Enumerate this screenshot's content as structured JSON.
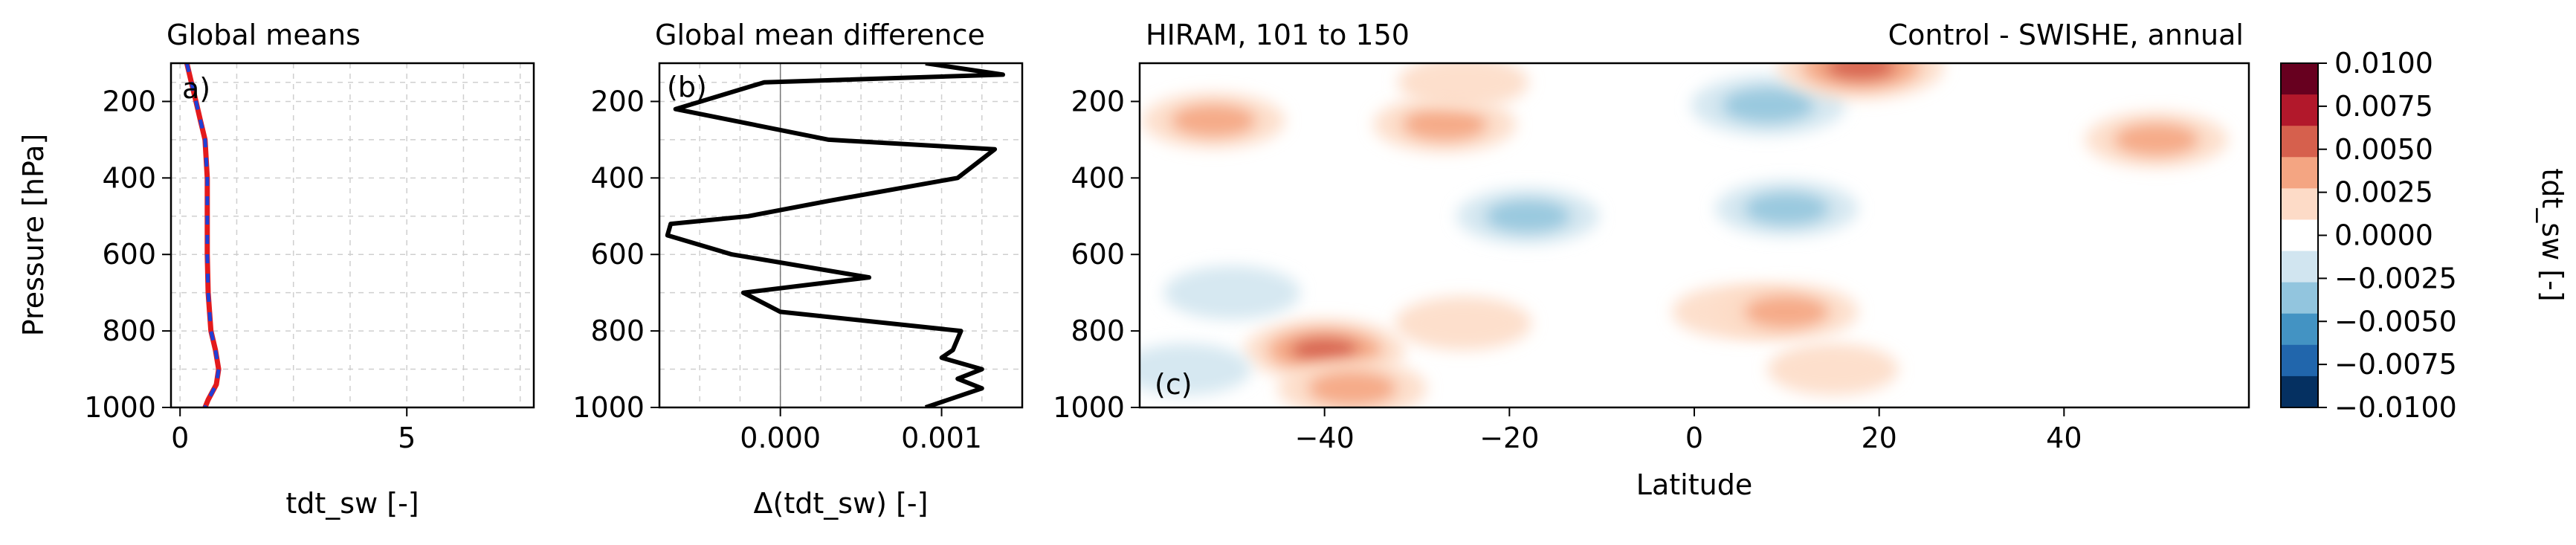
{
  "chart_data": [
    {
      "panel": "a",
      "type": "line",
      "title": "Global means",
      "panel_label": "a)",
      "xlabel": "tdt_sw [-]",
      "ylabel": "Pressure [hPa]",
      "xlim": [
        -0.2,
        7.8
      ],
      "ylim": [
        1000,
        100
      ],
      "xticks": [
        0,
        5
      ],
      "yticks": [
        200,
        400,
        600,
        800,
        1000
      ],
      "grid": true,
      "series": [
        {
          "color": "#e31a1c",
          "style": "solid",
          "x": [
            0.15,
            0.25,
            0.35,
            0.45,
            0.55,
            0.6,
            0.6,
            0.6,
            0.62,
            0.68,
            0.78,
            0.85,
            0.8,
            0.62,
            0.55
          ],
          "y": [
            100,
            150,
            200,
            250,
            300,
            400,
            500,
            600,
            700,
            800,
            850,
            900,
            940,
            980,
            1000
          ]
        },
        {
          "color": "#1f3fd6",
          "style": "dashed",
          "x": [
            0.15,
            0.25,
            0.35,
            0.45,
            0.55,
            0.6,
            0.6,
            0.6,
            0.62,
            0.68,
            0.78,
            0.85,
            0.8,
            0.62,
            0.55
          ],
          "y": [
            100,
            150,
            200,
            250,
            300,
            400,
            500,
            600,
            700,
            800,
            850,
            900,
            940,
            980,
            1000
          ]
        }
      ]
    },
    {
      "panel": "b",
      "type": "line",
      "title": "Global mean difference",
      "panel_label": "(b)",
      "xlabel": "Δ(tdt_sw) [-]",
      "xlim": [
        -0.00075,
        0.0015
      ],
      "ylim": [
        1000,
        100
      ],
      "xticks": [
        0.0,
        0.001
      ],
      "xticklabels": [
        "0.000",
        "0.001"
      ],
      "yticks": [
        200,
        400,
        600,
        800,
        1000
      ],
      "grid": true,
      "zero_line": true,
      "series": [
        {
          "color": "#000000",
          "x": [
            0.0009,
            0.00138,
            -0.0001,
            -0.00065,
            0.0003,
            0.00133,
            0.0011,
            0.0003,
            -0.0002,
            -0.00068,
            -0.0007,
            -0.0003,
            0.00055,
            -0.00023,
            0.0,
            0.00112,
            0.00107,
            0.001,
            0.00125,
            0.0011,
            0.00125,
            0.0009
          ],
          "y": [
            100,
            130,
            150,
            220,
            300,
            325,
            400,
            460,
            500,
            520,
            550,
            600,
            660,
            700,
            750,
            800,
            850,
            870,
            900,
            925,
            950,
            1000
          ]
        }
      ]
    },
    {
      "panel": "c",
      "type": "heatmap",
      "subtype": "filled-contour",
      "title": "HIRAM, 101 to 150",
      "title_right": "Control - SWISHE, annual",
      "panel_label": "(c)",
      "xlabel": "Latitude",
      "xlim": [
        -60,
        60
      ],
      "ylim": [
        1000,
        100
      ],
      "xticks": [
        -40,
        -20,
        0,
        20,
        40
      ],
      "xticklabels": [
        "−40",
        "−20",
        "0",
        "20",
        "40"
      ],
      "yticks": [
        200,
        400,
        600,
        800,
        1000
      ],
      "colormap": "RdBu_r",
      "blobs": [
        {
          "lat": -52,
          "p": 250,
          "value": 0.004
        },
        {
          "lat": -40,
          "p": 850,
          "value": 0.007
        },
        {
          "lat": -37,
          "p": 950,
          "value": 0.005
        },
        {
          "lat": -27,
          "p": 260,
          "value": 0.004
        },
        {
          "lat": -25,
          "p": 780,
          "value": 0.003
        },
        {
          "lat": -18,
          "p": 500,
          "value": -0.004
        },
        {
          "lat": -25,
          "p": 150,
          "value": 0.002
        },
        {
          "lat": 8,
          "p": 210,
          "value": -0.006
        },
        {
          "lat": 18,
          "p": 110,
          "value": 0.008
        },
        {
          "lat": 10,
          "p": 480,
          "value": -0.004
        },
        {
          "lat": 5,
          "p": 750,
          "value": 0.003
        },
        {
          "lat": 50,
          "p": 300,
          "value": 0.004
        },
        {
          "lat": -50,
          "p": 700,
          "value": -0.003
        },
        {
          "lat": -55,
          "p": 900,
          "value": -0.002
        },
        {
          "lat": 15,
          "p": 900,
          "value": 0.002
        },
        {
          "lat": 10,
          "p": 750,
          "value": 0.004
        }
      ]
    }
  ],
  "colorbar": {
    "label": "tdt_sw [-]",
    "tick_labels": [
      "0.0100",
      "0.0075",
      "0.0050",
      "0.0025",
      "0.0000",
      "−0.0025",
      "−0.0050",
      "−0.0075",
      "−0.0100"
    ],
    "levels_colors": [
      "#67001f",
      "#b2182b",
      "#d6604d",
      "#f4a582",
      "#fddbc7",
      "#ffffff",
      "#d1e5f0",
      "#92c5de",
      "#4393c3",
      "#2166ac",
      "#053061"
    ]
  }
}
